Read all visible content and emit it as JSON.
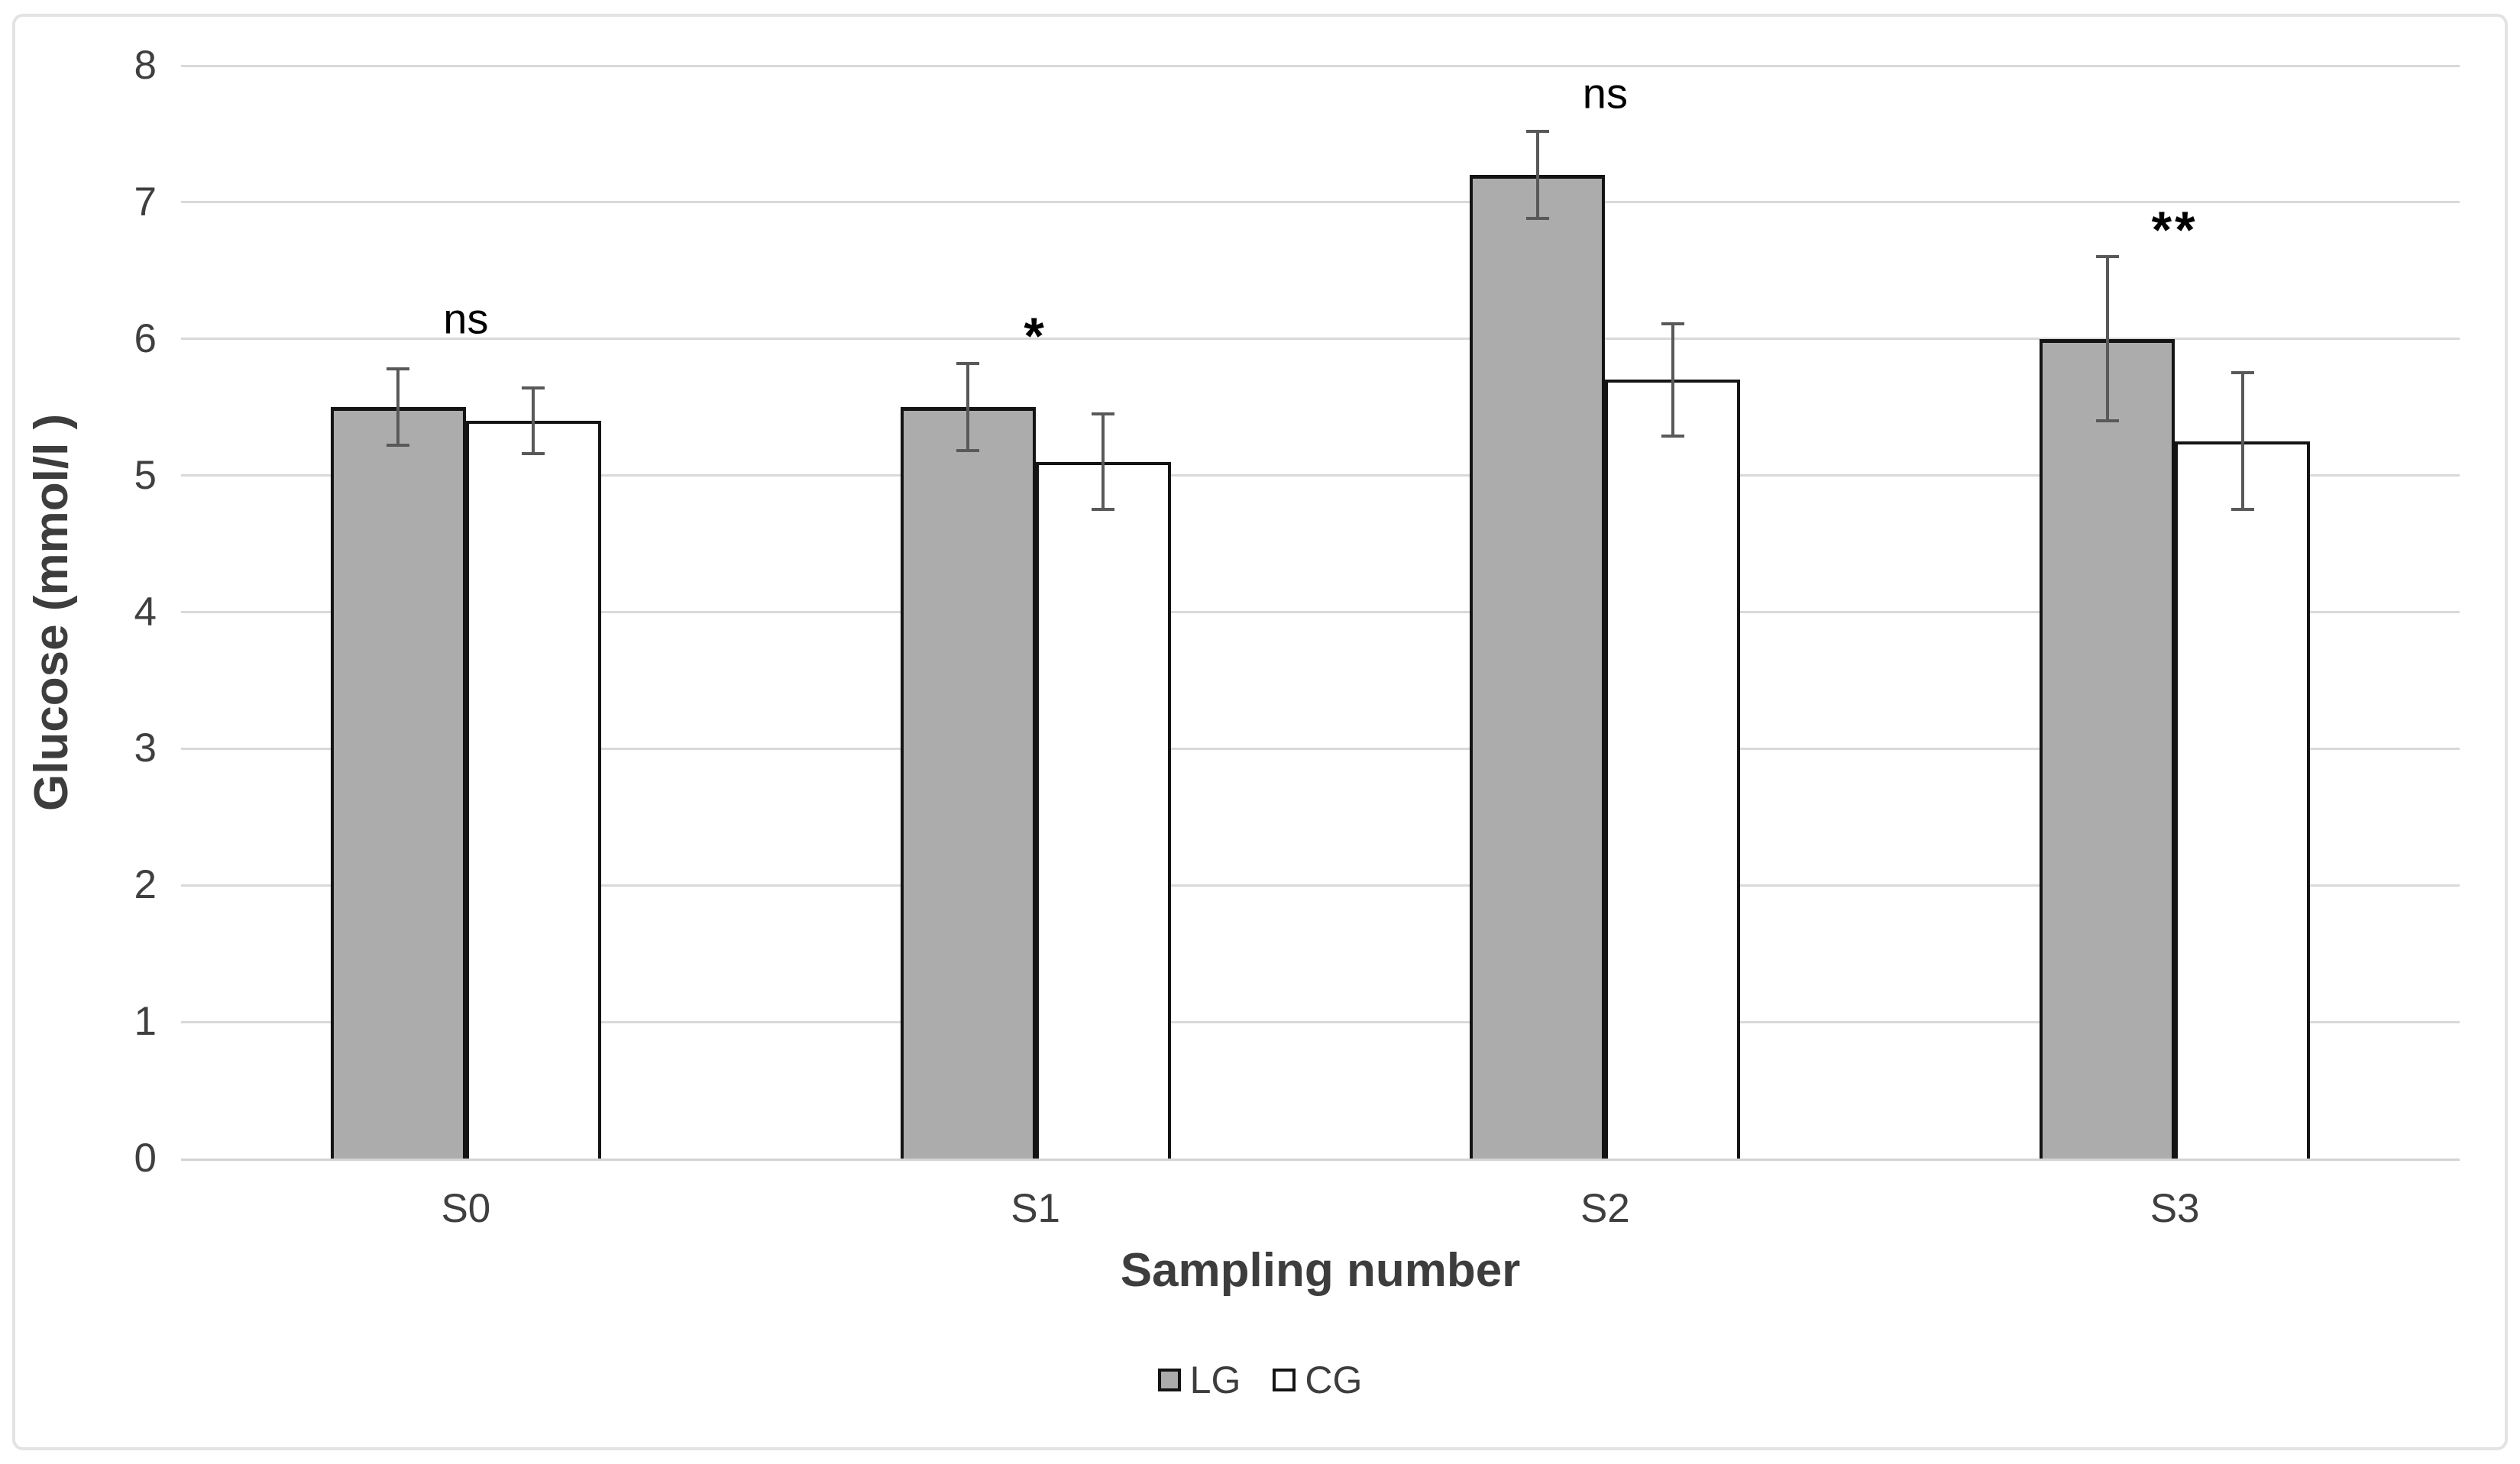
{
  "figure": {
    "background": "#ffffff",
    "frame_border_color": "#e3e3e3"
  },
  "chart_data": {
    "type": "bar",
    "title": "",
    "xlabel": "Sampling number",
    "ylabel": "Glucose (mmol/l )",
    "ylim": [
      0,
      8
    ],
    "yticks": [
      0,
      1,
      2,
      3,
      4,
      5,
      6,
      7,
      8
    ],
    "grid": "horizontal major gridlines",
    "gridline_color": "#d9d9d9",
    "axis_line_color": "#d3d3d3",
    "axis_text_color": "#3f3f3f",
    "error_bar_color": "#595959",
    "legend_position": "bottom center",
    "categories": [
      "S0",
      "S1",
      "S2",
      "S3"
    ],
    "series": [
      {
        "name": "LG",
        "fill": "#acacac",
        "border": "#141414",
        "values": [
          5.5,
          5.5,
          7.2,
          6.0
        ],
        "error_plus": [
          0.28,
          0.32,
          0.32,
          0.6
        ],
        "error_minus": [
          0.28,
          0.32,
          0.32,
          0.6
        ]
      },
      {
        "name": "CG",
        "fill": "#ffffff",
        "border": "#141414",
        "values": [
          5.4,
          5.1,
          5.7,
          5.25
        ],
        "error_plus": [
          0.24,
          0.35,
          0.41,
          0.5
        ],
        "error_minus": [
          0.24,
          0.35,
          0.41,
          0.5
        ]
      }
    ],
    "annotations": [
      {
        "category": "S0",
        "text": "ns",
        "y": 6.15
      },
      {
        "category": "S1",
        "text": "*",
        "y": 6.02
      },
      {
        "category": "S2",
        "text": "ns",
        "y": 7.8
      },
      {
        "category": "S3",
        "text": "**",
        "y": 6.8
      }
    ]
  }
}
